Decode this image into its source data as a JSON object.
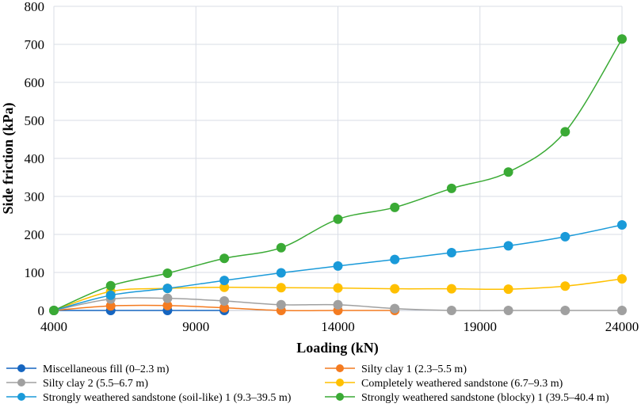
{
  "chart_data": {
    "type": "line",
    "title": "",
    "xlabel": "Loading (kN)",
    "ylabel": "Side friction (kPa)",
    "xlim": [
      4000,
      24000
    ],
    "ylim": [
      0,
      800
    ],
    "xticks": [
      "4000",
      "9000",
      "14000",
      "19000",
      "24000"
    ],
    "yticks": [
      "0",
      "100",
      "200",
      "300",
      "400",
      "500",
      "600",
      "700",
      "800"
    ],
    "grid": true,
    "legend_position": "bottom",
    "x": [
      4000,
      6000,
      8000,
      10000,
      12000,
      14000,
      16000,
      18000,
      20000,
      22000,
      24000
    ],
    "series": [
      {
        "name": "Miscellaneous fill (0–2.3 m)",
        "color": "#1565c0",
        "values": [
          0,
          0,
          0,
          0,
          null,
          null,
          null,
          null,
          null,
          null,
          null
        ]
      },
      {
        "name": "Silty clay 1 (2.3–5.5 m)",
        "color": "#f47b20",
        "values": [
          0,
          12,
          13,
          7,
          0,
          0,
          0,
          null,
          null,
          null,
          null
        ]
      },
      {
        "name": "Silty clay 2 (5.5–6.7 m)",
        "color": "#a0a0a0",
        "values": [
          0,
          30,
          32,
          25,
          15,
          15,
          5,
          0,
          0,
          0,
          0
        ]
      },
      {
        "name": "Completely weathered sandstone (6.7–9.3 m)",
        "color": "#ffc000",
        "values": [
          0,
          50,
          58,
          61,
          60,
          59,
          57,
          57,
          56,
          64,
          83
        ]
      },
      {
        "name": "Strongly weathered sandstone (soil-like) 1 (9.3–39.5 m)",
        "color": "#1a9ad9",
        "values": [
          0,
          40,
          58,
          79,
          99,
          117,
          134,
          152,
          170,
          194,
          225
        ]
      },
      {
        "name": "Strongly weathered sandstone (blocky) 1 (39.5–40.4 m)",
        "color": "#3aaa35",
        "values": [
          0,
          65,
          98,
          137,
          165,
          240,
          271,
          321,
          364,
          470,
          714
        ]
      }
    ]
  }
}
